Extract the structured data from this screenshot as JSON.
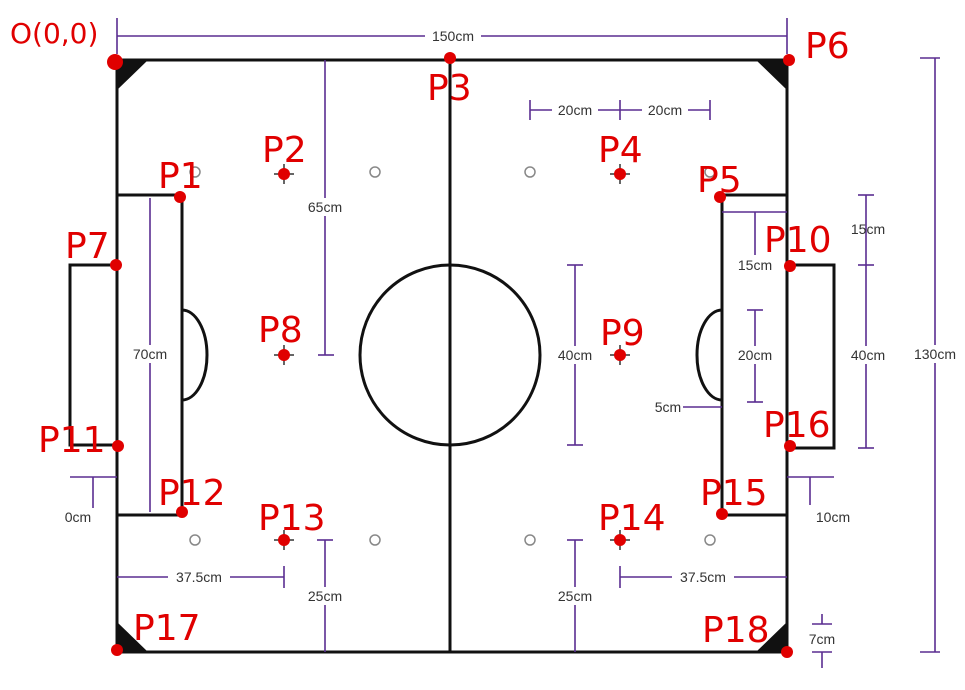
{
  "origin_label": "O(0,0)",
  "points": [
    {
      "label": "P1"
    },
    {
      "label": "P2"
    },
    {
      "label": "P3"
    },
    {
      "label": "P4"
    },
    {
      "label": "P5"
    },
    {
      "label": "P6"
    },
    {
      "label": "P7"
    },
    {
      "label": "P8"
    },
    {
      "label": "P9"
    },
    {
      "label": "P10"
    },
    {
      "label": "P11"
    },
    {
      "label": "P12"
    },
    {
      "label": "P13"
    },
    {
      "label": "P14"
    },
    {
      "label": "P15"
    },
    {
      "label": "P16"
    },
    {
      "label": "P17"
    },
    {
      "label": "P18"
    }
  ],
  "dimensions": {
    "width_total": "150cm",
    "height_total": "130cm",
    "spot_from_top": "65cm",
    "spot_spacing_a": "20cm",
    "spot_spacing_b": "20cm",
    "goal_area_height": "70cm",
    "goal_box_depth": "15cm",
    "goal_box_offset": "15cm",
    "goal_height": "40cm",
    "circle_diameter": "40cm",
    "penalty_arc_height": "20cm",
    "penalty_arc_depth": "5cm",
    "goal_depth_left": "0cm",
    "goal_depth_right": "10cm",
    "spot_from_left": "37.5cm",
    "spot_from_right": "37.5cm",
    "spot_from_bottom_left": "25cm",
    "spot_from_bottom_right": "25cm",
    "corner_size": "7cm",
    "center_circle_label": "40cm"
  },
  "colors": {
    "marker": "#e00000",
    "dimension": "#5a2d91",
    "field_line": "#111111"
  }
}
